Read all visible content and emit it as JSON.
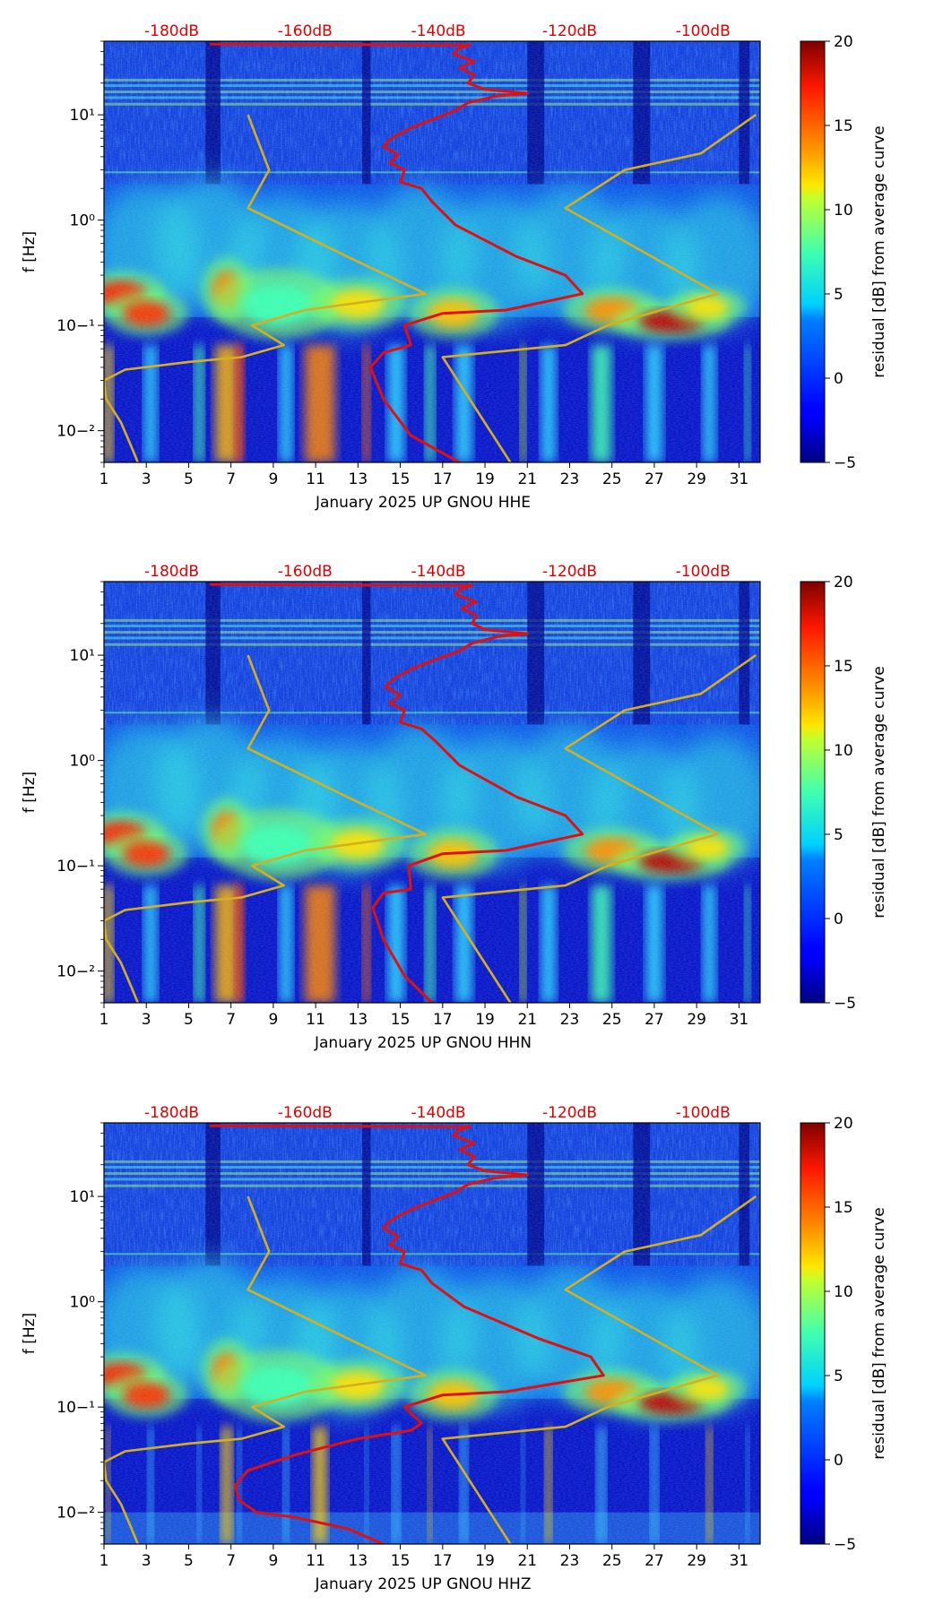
{
  "figure": {
    "background": "#ffffff"
  },
  "colors": {
    "noise_model_curve": "#d4b020",
    "average_curve": "#e01010",
    "db_scale_labels": "#e00000",
    "axis": "#000000"
  },
  "top_axis_labels": [
    "-180dB",
    "-160dB",
    "-140dB",
    "-120dB",
    "-100dB"
  ],
  "colorbar": {
    "label": "residual [dB] from average curve",
    "ticks": [
      "20",
      "15",
      "10",
      "5",
      "0",
      "−5"
    ],
    "range": [
      -5,
      20
    ],
    "colormap": "jet"
  },
  "chart_data": [
    {
      "type": "heatmap",
      "channel": "HHE",
      "xlabel": "January 2025 UP GNOU  HHE",
      "ylabel": "f [Hz]",
      "x_ticks": [
        "1",
        "3",
        "5",
        "7",
        "9",
        "11",
        "13",
        "15",
        "17",
        "19",
        "21",
        "23",
        "25",
        "27",
        "29",
        "31"
      ],
      "y_ticks": [
        "10−²",
        "10−¹",
        "10⁰",
        "10¹"
      ],
      "xlim": [
        1,
        32
      ],
      "ylim_hz": [
        0.005,
        50
      ],
      "noise_model_curve": [
        [
          2.6,
          0.005
        ],
        [
          2.3,
          0.007
        ],
        [
          1.8,
          0.012
        ],
        [
          1.1,
          0.02
        ],
        [
          1.0,
          0.03
        ],
        [
          2.0,
          0.038
        ],
        [
          5.0,
          0.045
        ],
        [
          7.5,
          0.05
        ],
        [
          9.5,
          0.065
        ],
        [
          8.0,
          0.1
        ],
        [
          10.5,
          0.14
        ],
        [
          16.2,
          0.2
        ],
        [
          12.5,
          0.45
        ],
        [
          7.8,
          1.3
        ],
        [
          8.8,
          3.0
        ],
        [
          7.8,
          10.0
        ]
      ],
      "average_curve": [
        [
          17.8,
          0.005
        ],
        [
          15.5,
          0.009
        ],
        [
          14.2,
          0.02
        ],
        [
          13.6,
          0.04
        ],
        [
          14.2,
          0.055
        ],
        [
          15.5,
          0.065
        ],
        [
          15.2,
          0.1
        ],
        [
          17.0,
          0.13
        ],
        [
          20.0,
          0.14
        ],
        [
          23.6,
          0.2
        ],
        [
          22.8,
          0.3
        ],
        [
          20.5,
          0.45
        ],
        [
          17.6,
          0.9
        ],
        [
          16.5,
          1.5
        ],
        [
          16.0,
          2.0
        ],
        [
          15.0,
          2.3
        ],
        [
          15.2,
          3.0
        ],
        [
          14.5,
          3.5
        ],
        [
          14.9,
          4.2
        ],
        [
          14.2,
          5.0
        ],
        [
          14.6,
          6.0
        ],
        [
          15.5,
          7.5
        ],
        [
          16.5,
          9.0
        ],
        [
          17.6,
          11.0
        ],
        [
          18.2,
          13.0
        ],
        [
          19.5,
          15.0
        ],
        [
          21.0,
          16.0
        ],
        [
          19.0,
          17.5
        ],
        [
          18.2,
          20.0
        ],
        [
          18.5,
          24.0
        ],
        [
          17.8,
          28.0
        ],
        [
          18.5,
          32.0
        ],
        [
          17.5,
          38.0
        ],
        [
          17.8,
          43.0
        ],
        [
          18.3,
          46.0
        ],
        [
          6.0,
          47.0
        ]
      ]
    },
    {
      "type": "heatmap",
      "channel": "HHN",
      "xlabel": "January 2025 UP GNOU  HHN",
      "ylabel": "f [Hz]",
      "x_ticks": [
        "1",
        "3",
        "5",
        "7",
        "9",
        "11",
        "13",
        "15",
        "17",
        "19",
        "21",
        "23",
        "25",
        "27",
        "29",
        "31"
      ],
      "y_ticks": [
        "10−²",
        "10−¹",
        "10⁰",
        "10¹"
      ],
      "xlim": [
        1,
        32
      ],
      "ylim_hz": [
        0.005,
        50
      ],
      "noise_model_curve": [
        [
          2.6,
          0.005
        ],
        [
          2.3,
          0.007
        ],
        [
          1.8,
          0.012
        ],
        [
          1.1,
          0.02
        ],
        [
          1.0,
          0.03
        ],
        [
          2.0,
          0.038
        ],
        [
          5.0,
          0.045
        ],
        [
          7.5,
          0.05
        ],
        [
          9.5,
          0.065
        ],
        [
          8.0,
          0.1
        ],
        [
          10.5,
          0.14
        ],
        [
          16.2,
          0.2
        ],
        [
          12.5,
          0.45
        ],
        [
          7.8,
          1.3
        ],
        [
          8.8,
          3.0
        ],
        [
          7.8,
          10.0
        ]
      ],
      "average_curve": [
        [
          16.5,
          0.005
        ],
        [
          15.2,
          0.009
        ],
        [
          14.2,
          0.02
        ],
        [
          13.7,
          0.04
        ],
        [
          14.2,
          0.055
        ],
        [
          15.5,
          0.06
        ],
        [
          15.4,
          0.1
        ],
        [
          17.0,
          0.13
        ],
        [
          20.0,
          0.14
        ],
        [
          23.6,
          0.2
        ],
        [
          22.8,
          0.3
        ],
        [
          20.5,
          0.45
        ],
        [
          17.8,
          0.9
        ],
        [
          16.7,
          1.5
        ],
        [
          16.0,
          2.0
        ],
        [
          15.0,
          2.3
        ],
        [
          15.2,
          3.0
        ],
        [
          14.5,
          3.5
        ],
        [
          15.0,
          4.2
        ],
        [
          14.3,
          5.0
        ],
        [
          14.7,
          6.0
        ],
        [
          15.6,
          7.5
        ],
        [
          16.6,
          9.0
        ],
        [
          17.8,
          11.0
        ],
        [
          18.4,
          13.0
        ],
        [
          19.6,
          15.0
        ],
        [
          21.0,
          16.0
        ],
        [
          19.0,
          17.5
        ],
        [
          18.4,
          20.0
        ],
        [
          18.6,
          24.0
        ],
        [
          17.9,
          28.0
        ],
        [
          18.6,
          32.0
        ],
        [
          17.6,
          38.0
        ],
        [
          17.9,
          43.0
        ],
        [
          18.4,
          46.0
        ],
        [
          6.0,
          47.0
        ]
      ]
    },
    {
      "type": "heatmap",
      "channel": "HHZ",
      "xlabel": "January 2025 UP GNOU  HHZ",
      "ylabel": "f [Hz]",
      "x_ticks": [
        "1",
        "3",
        "5",
        "7",
        "9",
        "11",
        "13",
        "15",
        "17",
        "19",
        "21",
        "23",
        "25",
        "27",
        "29",
        "31"
      ],
      "y_ticks": [
        "10−²",
        "10−¹",
        "10⁰",
        "10¹"
      ],
      "xlim": [
        1,
        32
      ],
      "ylim_hz": [
        0.005,
        50
      ],
      "noise_model_curve": [
        [
          2.6,
          0.005
        ],
        [
          2.3,
          0.007
        ],
        [
          1.8,
          0.012
        ],
        [
          1.1,
          0.02
        ],
        [
          1.0,
          0.03
        ],
        [
          2.0,
          0.038
        ],
        [
          5.0,
          0.045
        ],
        [
          7.5,
          0.05
        ],
        [
          9.5,
          0.065
        ],
        [
          8.0,
          0.1
        ],
        [
          10.5,
          0.14
        ],
        [
          16.2,
          0.2
        ],
        [
          12.5,
          0.45
        ],
        [
          7.8,
          1.3
        ],
        [
          8.8,
          3.0
        ],
        [
          7.8,
          10.0
        ]
      ],
      "average_curve": [
        [
          14.2,
          0.005
        ],
        [
          12.5,
          0.007
        ],
        [
          10.0,
          0.009
        ],
        [
          8.2,
          0.01
        ],
        [
          7.4,
          0.013
        ],
        [
          7.2,
          0.018
        ],
        [
          7.8,
          0.025
        ],
        [
          10.0,
          0.035
        ],
        [
          13.0,
          0.05
        ],
        [
          15.5,
          0.06
        ],
        [
          16.0,
          0.07
        ],
        [
          15.2,
          0.1
        ],
        [
          17.0,
          0.13
        ],
        [
          20.0,
          0.14
        ],
        [
          24.6,
          0.2
        ],
        [
          24.0,
          0.3
        ],
        [
          21.5,
          0.45
        ],
        [
          18.0,
          0.9
        ],
        [
          16.5,
          1.5
        ],
        [
          16.0,
          2.0
        ],
        [
          15.0,
          2.3
        ],
        [
          15.2,
          3.0
        ],
        [
          14.5,
          3.5
        ],
        [
          14.9,
          4.2
        ],
        [
          14.2,
          5.0
        ],
        [
          14.6,
          6.0
        ],
        [
          15.5,
          7.5
        ],
        [
          16.5,
          9.0
        ],
        [
          17.6,
          11.0
        ],
        [
          18.2,
          13.0
        ],
        [
          19.5,
          15.0
        ],
        [
          21.0,
          16.0
        ],
        [
          19.0,
          17.5
        ],
        [
          18.2,
          20.0
        ],
        [
          18.5,
          24.0
        ],
        [
          17.8,
          28.0
        ],
        [
          18.5,
          32.0
        ],
        [
          17.5,
          38.0
        ],
        [
          17.8,
          43.0
        ],
        [
          18.3,
          46.0
        ],
        [
          6.0,
          47.0
        ]
      ]
    }
  ]
}
